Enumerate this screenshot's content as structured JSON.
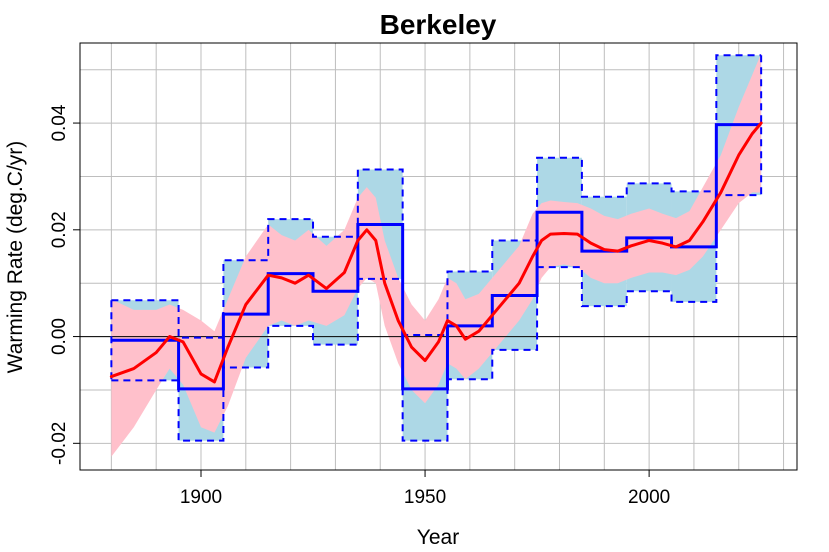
{
  "chart_data": {
    "type": "line",
    "title": "Berkeley",
    "xlabel": "Year",
    "ylabel": "Warming Rate (deg.C/yr)",
    "xlim": [
      1873,
      2033
    ],
    "ylim": [
      -0.025,
      0.055
    ],
    "x_ticks": [
      {
        "value": 1900,
        "label": "1900"
      },
      {
        "value": 1950,
        "label": "1950"
      },
      {
        "value": 2000,
        "label": "2000"
      }
    ],
    "y_ticks": [
      {
        "value": -0.02,
        "label": "-0.02"
      },
      {
        "value": 0.0,
        "label": "0.00"
      },
      {
        "value": 0.02,
        "label": "0.02"
      },
      {
        "value": 0.04,
        "label": "0.04"
      }
    ],
    "grid": true,
    "grid_x": [
      1880,
      1890,
      1900,
      1910,
      1920,
      1930,
      1940,
      1950,
      1960,
      1970,
      1980,
      1990,
      2000,
      2010,
      2020,
      2030
    ],
    "grid_y": [
      -0.02,
      -0.01,
      0.0,
      0.01,
      0.02,
      0.03,
      0.04,
      0.05
    ],
    "zero_line": 0.0,
    "colors": {
      "step_line": "#0000ff",
      "step_band": "#add8e6",
      "smooth_line": "#ff0000",
      "smooth_band": "#ffc0cb",
      "grid": "#bebebe"
    },
    "series": [
      {
        "kind": "decadal-step",
        "segments": [
          {
            "x0": 1880,
            "x1": 1895,
            "value": -0.0007,
            "lower": -0.0082,
            "upper": 0.0068
          },
          {
            "x0": 1895,
            "x1": 1905,
            "value": -0.0098,
            "lower": -0.0195,
            "upper": -0.0002
          },
          {
            "x0": 1905,
            "x1": 1915,
            "value": 0.0042,
            "lower": -0.0058,
            "upper": 0.0143
          },
          {
            "x0": 1915,
            "x1": 1925,
            "value": 0.0118,
            "lower": 0.002,
            "upper": 0.022
          },
          {
            "x0": 1925,
            "x1": 1935,
            "value": 0.0085,
            "lower": -0.0015,
            "upper": 0.0187
          },
          {
            "x0": 1935,
            "x1": 1945,
            "value": 0.021,
            "lower": 0.0108,
            "upper": 0.0313
          },
          {
            "x0": 1945,
            "x1": 1955,
            "value": -0.0098,
            "lower": -0.0195,
            "upper": 0.0003
          },
          {
            "x0": 1955,
            "x1": 1965,
            "value": 0.002,
            "lower": -0.008,
            "upper": 0.0122
          },
          {
            "x0": 1965,
            "x1": 1975,
            "value": 0.0077,
            "lower": -0.0025,
            "upper": 0.018
          },
          {
            "x0": 1975,
            "x1": 1985,
            "value": 0.0233,
            "lower": 0.013,
            "upper": 0.0335
          },
          {
            "x0": 1985,
            "x1": 1995,
            "value": 0.016,
            "lower": 0.0057,
            "upper": 0.0262
          },
          {
            "x0": 1995,
            "x1": 2005,
            "value": 0.0185,
            "lower": 0.0085,
            "upper": 0.0287
          },
          {
            "x0": 2005,
            "x1": 2015,
            "value": 0.0168,
            "lower": 0.0065,
            "upper": 0.0272
          },
          {
            "x0": 2015,
            "x1": 2025,
            "value": 0.0397,
            "lower": 0.0265,
            "upper": 0.0527
          }
        ]
      },
      {
        "kind": "smooth",
        "x": [
          1880,
          1885,
          1890,
          1893,
          1896,
          1900,
          1903,
          1906,
          1910,
          1915,
          1918,
          1921,
          1924,
          1928,
          1932,
          1935,
          1937,
          1939,
          1941,
          1944,
          1947,
          1950,
          1953,
          1955,
          1957,
          1959,
          1962,
          1965,
          1968,
          1971,
          1974,
          1976,
          1978,
          1981,
          1984,
          1987,
          1990,
          1993,
          1996,
          2000,
          2003,
          2006,
          2009,
          2012,
          2016,
          2020,
          2023,
          2025
        ],
        "values": [
          -0.0075,
          -0.006,
          -0.003,
          0.0,
          -0.001,
          -0.007,
          -0.0085,
          -0.002,
          0.006,
          0.0115,
          0.011,
          0.01,
          0.0115,
          0.009,
          0.012,
          0.018,
          0.02,
          0.018,
          0.01,
          0.003,
          -0.002,
          -0.0045,
          -0.001,
          0.003,
          0.002,
          -0.0005,
          0.001,
          0.004,
          0.007,
          0.01,
          0.015,
          0.018,
          0.0192,
          0.0193,
          0.0192,
          0.0175,
          0.0163,
          0.016,
          0.017,
          0.018,
          0.0175,
          0.0168,
          0.018,
          0.0215,
          0.027,
          0.034,
          0.038,
          0.04
        ],
        "lower": [
          -0.0225,
          -0.017,
          -0.01,
          -0.006,
          -0.009,
          -0.017,
          -0.018,
          -0.013,
          -0.004,
          0.002,
          0.003,
          0.002,
          0.003,
          0.002,
          0.004,
          0.009,
          0.011,
          0.01,
          0.002,
          -0.005,
          -0.01,
          -0.0125,
          -0.009,
          -0.005,
          -0.006,
          -0.008,
          -0.006,
          -0.003,
          0.0,
          0.003,
          0.007,
          0.011,
          0.013,
          0.0135,
          0.013,
          0.011,
          0.01,
          0.01,
          0.011,
          0.012,
          0.012,
          0.0115,
          0.0125,
          0.015,
          0.02,
          0.025,
          0.027,
          0.027
        ],
        "upper": [
          0.007,
          0.005,
          0.005,
          0.006,
          0.005,
          0.003,
          0.001,
          0.007,
          0.015,
          0.021,
          0.019,
          0.018,
          0.02,
          0.017,
          0.02,
          0.026,
          0.028,
          0.026,
          0.018,
          0.011,
          0.006,
          0.003,
          0.007,
          0.011,
          0.01,
          0.007,
          0.008,
          0.011,
          0.014,
          0.017,
          0.023,
          0.025,
          0.0255,
          0.0252,
          0.025,
          0.024,
          0.0226,
          0.022,
          0.023,
          0.024,
          0.023,
          0.0222,
          0.0235,
          0.028,
          0.034,
          0.043,
          0.049,
          0.053
        ]
      }
    ]
  }
}
